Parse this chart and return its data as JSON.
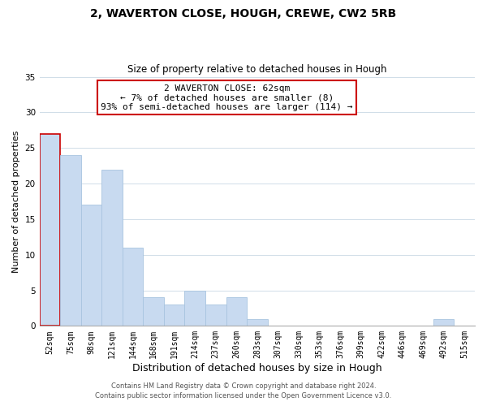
{
  "title": "2, WAVERTON CLOSE, HOUGH, CREWE, CW2 5RB",
  "subtitle": "Size of property relative to detached houses in Hough",
  "xlabel": "Distribution of detached houses by size in Hough",
  "ylabel": "Number of detached properties",
  "bar_color": "#c8daf0",
  "bar_edge_color": "#a8c4e0",
  "categories": [
    "52sqm",
    "75sqm",
    "98sqm",
    "121sqm",
    "144sqm",
    "168sqm",
    "191sqm",
    "214sqm",
    "237sqm",
    "260sqm",
    "283sqm",
    "307sqm",
    "330sqm",
    "353sqm",
    "376sqm",
    "399sqm",
    "422sqm",
    "446sqm",
    "469sqm",
    "492sqm",
    "515sqm"
  ],
  "values": [
    27,
    24,
    17,
    22,
    11,
    4,
    3,
    5,
    3,
    4,
    1,
    0,
    0,
    0,
    0,
    0,
    0,
    0,
    0,
    1,
    0
  ],
  "ylim": [
    0,
    35
  ],
  "yticks": [
    0,
    5,
    10,
    15,
    20,
    25,
    30,
    35
  ],
  "annotation_text": "2 WAVERTON CLOSE: 62sqm\n← 7% of detached houses are smaller (8)\n93% of semi-detached houses are larger (114) →",
  "annotation_box_color": "#ffffff",
  "annotation_box_edge_color": "#cc0000",
  "highlight_bar_index": 0,
  "highlight_bar_edge_color": "#cc0000",
  "footer_line1": "Contains HM Land Registry data © Crown copyright and database right 2024.",
  "footer_line2": "Contains public sector information licensed under the Open Government Licence v3.0.",
  "grid_color": "#d0dde8",
  "title_fontsize": 10,
  "subtitle_fontsize": 8.5,
  "xlabel_fontsize": 9,
  "ylabel_fontsize": 8,
  "tick_fontsize": 7,
  "footer_fontsize": 6,
  "annotation_fontsize": 8
}
